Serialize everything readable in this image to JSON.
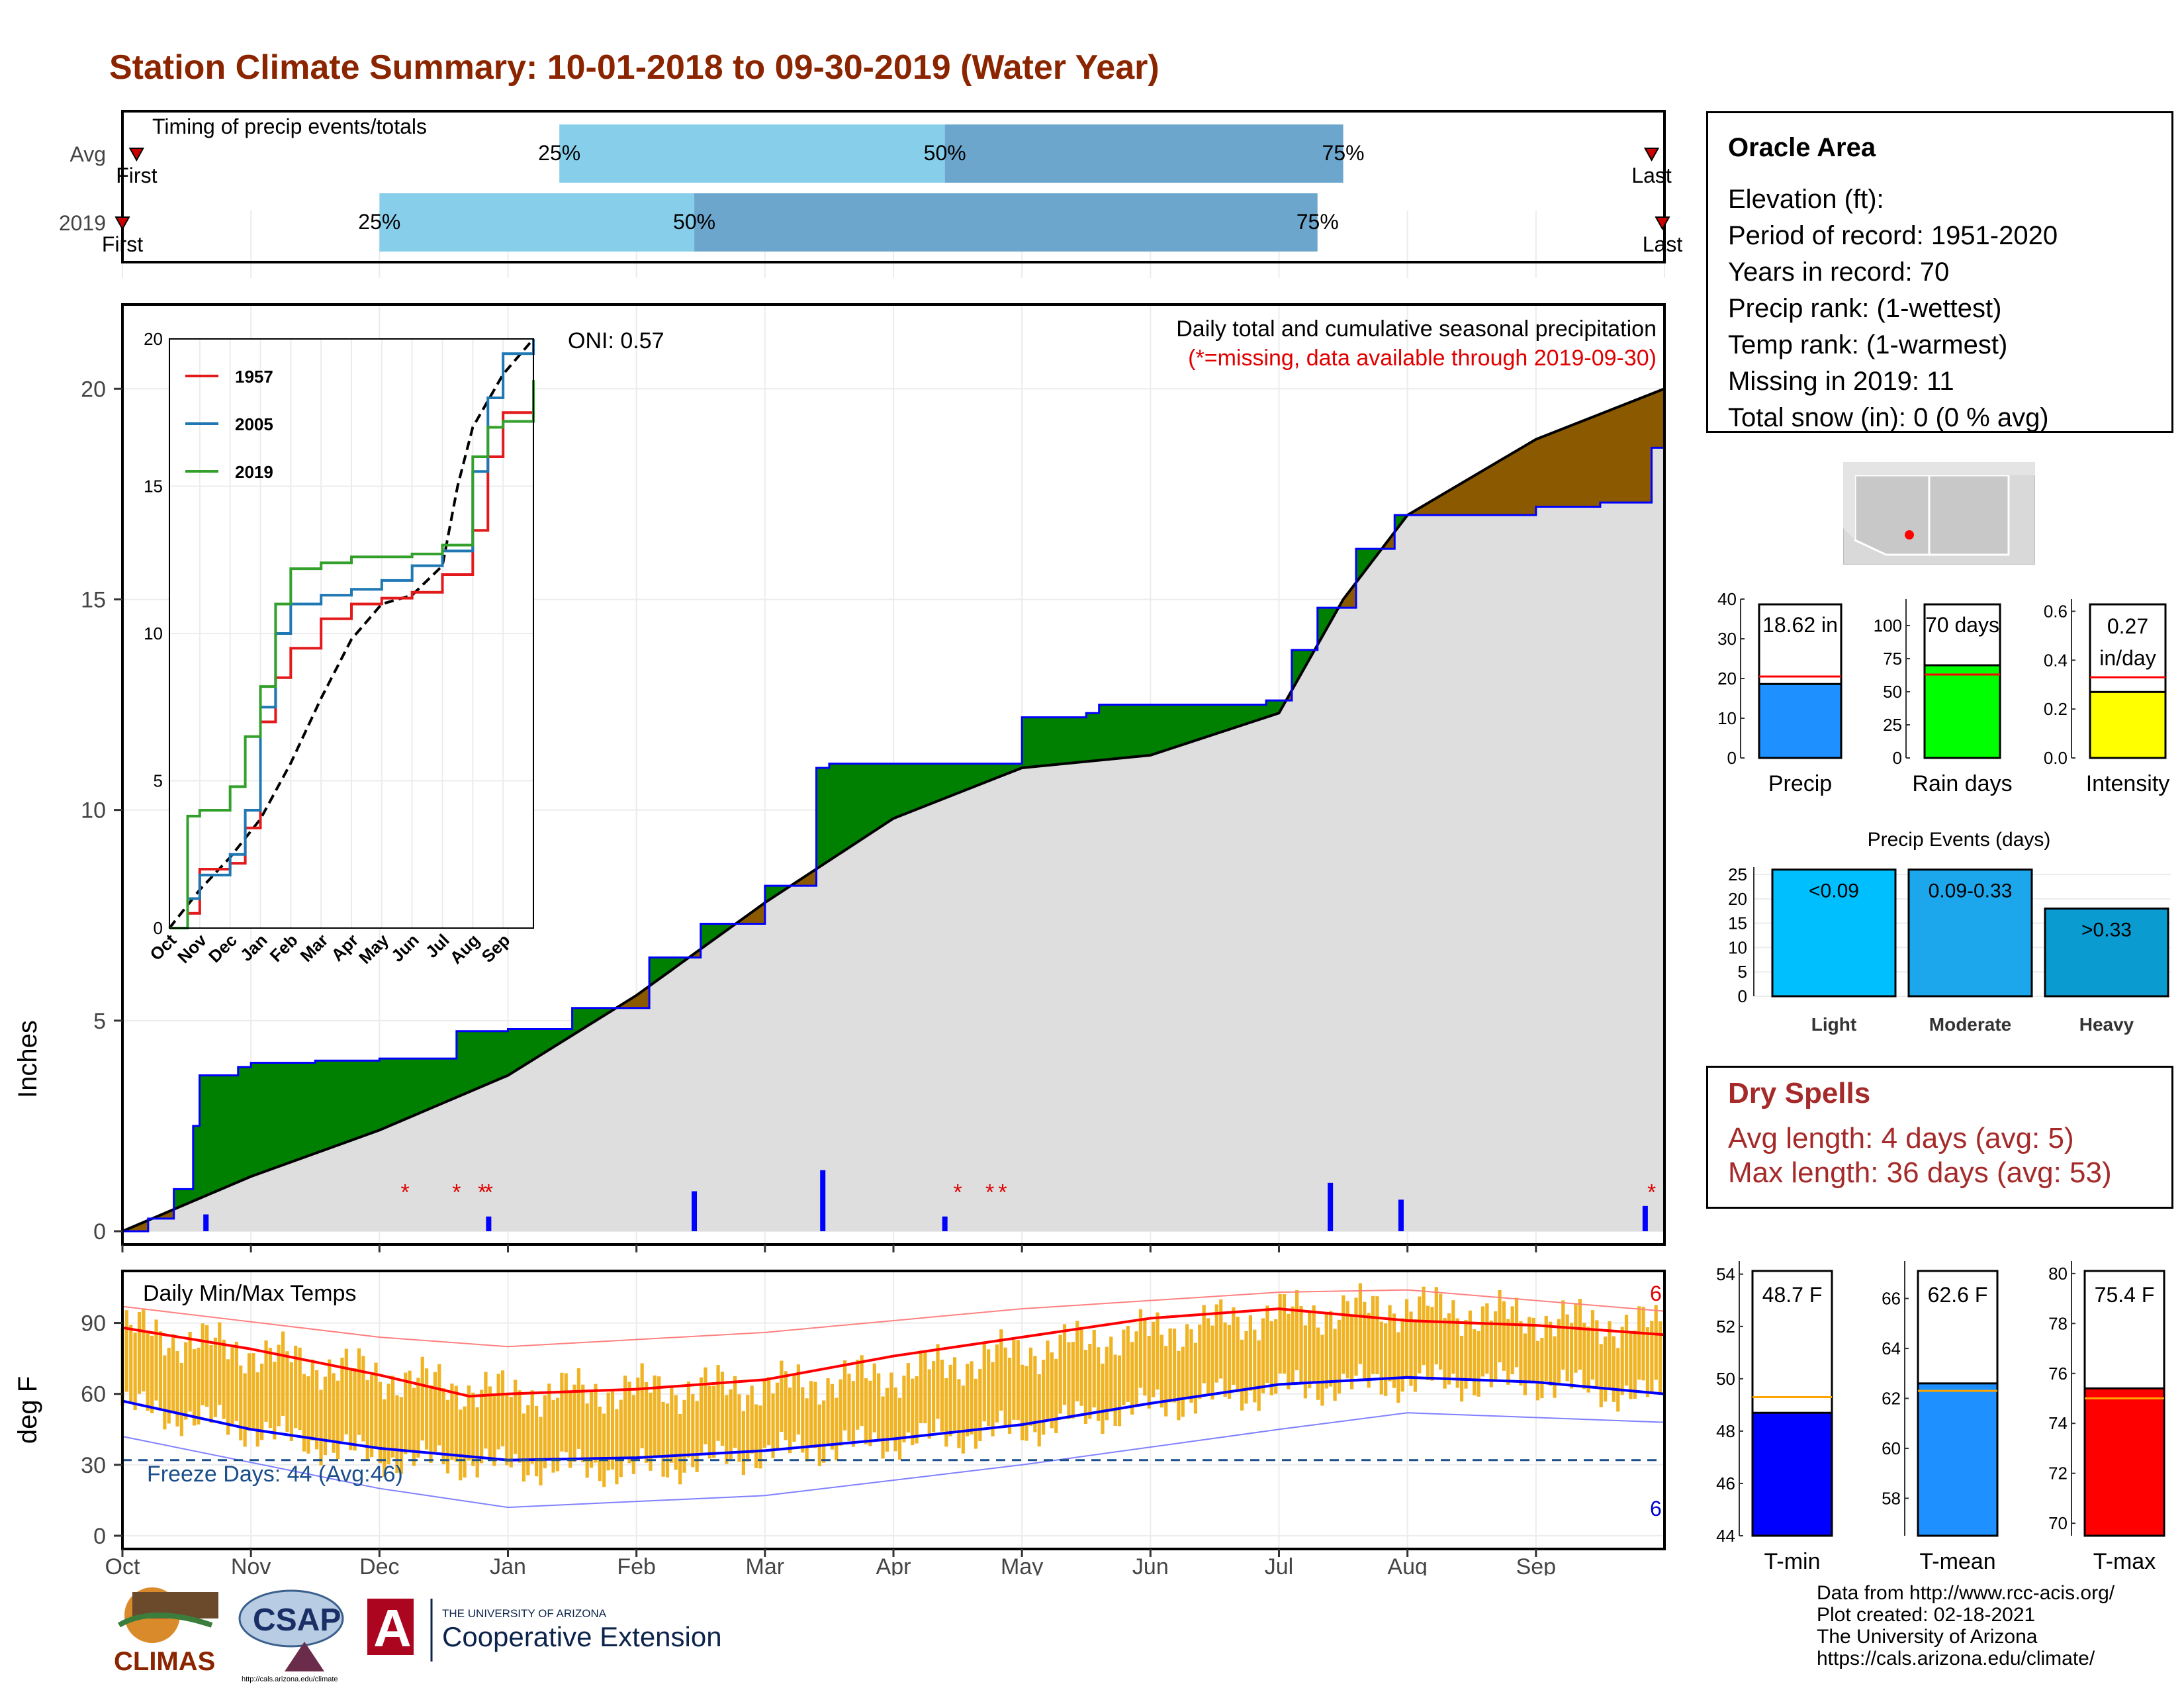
{
  "title": "Station Climate Summary: 10-01-2018 to 09-30-2019 (Water Year)",
  "timing": {
    "label": "Timing of precip events/totals",
    "rows": [
      {
        "name": "Avg",
        "first_label": "First",
        "last_label": "Last",
        "first": 0.11,
        "q25": 3.4,
        "q50": 6.4,
        "q75": 9.5,
        "last": 11.9
      },
      {
        "name": "2019",
        "first_label": "First",
        "last_label": "Last",
        "first": 0.0,
        "q25": 2.0,
        "q50": 4.45,
        "q75": 9.3,
        "last": 12.2
      }
    ],
    "pct_labels": [
      "25%",
      "50%",
      "75%"
    ]
  },
  "precip_panel": {
    "title": "Daily total and cumulative seasonal precipitation",
    "subtitle": "(*=missing, data available through 2019-09-30)",
    "oni": "ONI: 0.57",
    "ylabel": "Inches",
    "yticks": [
      0,
      5,
      10,
      15,
      20
    ],
    "ylim": [
      0,
      22
    ],
    "xticks": [
      "Oct",
      "Nov",
      "Dec",
      "Jan",
      "Feb",
      "Mar",
      "Apr",
      "May",
      "Jun",
      "Jul",
      "Aug",
      "Sep"
    ]
  },
  "inset": {
    "series": [
      {
        "name": "1957",
        "color": "#e31a1c"
      },
      {
        "name": "2005",
        "color": "#1f78b4"
      },
      {
        "name": "2019",
        "color": "#33a02c"
      }
    ],
    "yticks": [
      0,
      5,
      10,
      15,
      20
    ],
    "xticks": [
      "Oct",
      "Nov",
      "Dec",
      "Jan",
      "Feb",
      "Mar",
      "Apr",
      "May",
      "Jun",
      "Jul",
      "Aug",
      "Sep"
    ]
  },
  "temp_panel": {
    "title": "Daily Min/Max Temps",
    "ylabel": "deg F",
    "yticks": [
      0,
      30,
      60,
      90
    ],
    "ylim": [
      0,
      112
    ],
    "freeze_label": "Freeze Days: 44 (Avg:46)",
    "freeze_line": 32,
    "record_high_count": "6",
    "record_low_count": "6",
    "xticks": [
      "Oct",
      "Nov",
      "Dec",
      "Jan",
      "Feb",
      "Mar",
      "Apr",
      "May",
      "Jun",
      "Jul",
      "Aug",
      "Sep"
    ]
  },
  "info": {
    "station": "Oracle Area",
    "lines": [
      "Elevation (ft):",
      "Period of record: 1951-2020",
      "Years in record: 70",
      "Precip rank:  (1-wettest)",
      "Temp rank:  (1-warmest)",
      "Missing in 2019: 11",
      "Total snow (in): 0 (0 % avg)"
    ]
  },
  "summary_bars": [
    {
      "label": "Precip",
      "value_text": "18.62 in",
      "value": 18.62,
      "avg": 20.5,
      "ylim": [
        0,
        40
      ],
      "yticks": [
        0,
        10,
        20,
        30,
        40
      ],
      "color": "#1E90FF"
    },
    {
      "label": "Rain days",
      "value_text": "70 days",
      "value": 70,
      "avg": 63,
      "ylim": [
        0,
        120
      ],
      "yticks": [
        0,
        25,
        50,
        75,
        100
      ],
      "color": "#00FF00"
    },
    {
      "label": "Intensity",
      "value_text": "0.27 in/day",
      "value": 0.27,
      "avg": 0.33,
      "ylim": [
        0,
        0.65
      ],
      "yticks": [
        "0.0",
        "0.2",
        "0.4",
        "0.6"
      ],
      "color": "#FFFF00"
    }
  ],
  "precip_events": {
    "title": "Precip Events (days)",
    "yticks": [
      0,
      5,
      10,
      15,
      20,
      25
    ],
    "ylim": [
      0,
      26.5
    ],
    "bars": [
      {
        "cat": "Light",
        "label": "<0.09",
        "value": 26,
        "color": "#00BFFF"
      },
      {
        "cat": "Moderate",
        "label": "0.09-0.33",
        "value": 26,
        "color": "#1CA7EC"
      },
      {
        "cat": "Heavy",
        "label": ">0.33",
        "value": 18,
        "color": "#0A9BD0"
      }
    ]
  },
  "dry_spells": {
    "title": "Dry Spells",
    "avg_length": "Avg length: 4 days (avg: 5)",
    "max_length": "Max length: 36 days (avg: 53)"
  },
  "temp_bars": [
    {
      "label": "T-min",
      "value_text": "48.7 F",
      "value": 48.7,
      "avg": 49.3,
      "ylim": [
        44,
        54.5
      ],
      "yticks": [
        44,
        46,
        48,
        50,
        52,
        54
      ],
      "color": "#0000FF"
    },
    {
      "label": "T-mean",
      "value_text": "62.6 F",
      "value": 62.6,
      "avg": 62.3,
      "ylim": [
        56.5,
        67.5
      ],
      "yticks": [
        58,
        60,
        62,
        64,
        66
      ],
      "color": "#1E90FF"
    },
    {
      "label": "T-max",
      "value_text": "75.4 F",
      "value": 75.4,
      "avg": 75.0,
      "ylim": [
        69.5,
        80.5
      ],
      "yticks": [
        70,
        72,
        74,
        76,
        78,
        80
      ],
      "color": "#FF0000"
    }
  ],
  "credits": [
    "Data from http://www.rcc-acis.org/",
    "Plot created: 02-18-2021",
    "The University of Arizona",
    "https://cals.arizona.edu/climate/"
  ],
  "logos": {
    "climas": "CLIMAS",
    "csap": "CSAP",
    "csap_url": "http://cals.arizona.edu/climate",
    "ua_small": "THE UNIVERSITY OF ARIZONA",
    "ua_big": "Cooperative Extension"
  },
  "chart_data": [
    {
      "type": "area",
      "title": "Daily total and cumulative seasonal precipitation",
      "ylabel": "Inches",
      "ylim": [
        0,
        22
      ],
      "series": [
        {
          "name": "Cumulative precipitation (2019)",
          "x_month": [
            0,
            0.2,
            0.4,
            0.55,
            0.6,
            0.9,
            1.0,
            1.5,
            2.0,
            2.6,
            3.0,
            3.5,
            4.1,
            4.5,
            5.0,
            5.4,
            5.5,
            7.0,
            7.5,
            7.6,
            8.9,
            9.1,
            9.3,
            9.6,
            9.9,
            10.0,
            11.0,
            11.5,
            11.9,
            12.0
          ],
          "y": [
            0,
            0.3,
            1.0,
            2.5,
            3.7,
            3.9,
            4.0,
            4.05,
            4.1,
            4.75,
            4.8,
            5.3,
            6.5,
            7.3,
            8.2,
            11.0,
            11.1,
            12.2,
            12.3,
            12.5,
            12.6,
            13.8,
            14.8,
            16.2,
            17.0,
            17.0,
            17.2,
            17.3,
            18.6,
            18.6
          ]
        },
        {
          "name": "Average cumulative precipitation",
          "x_month": [
            0,
            1,
            2,
            3,
            4,
            5,
            6,
            7,
            8,
            9,
            9.5,
            10,
            11,
            12
          ],
          "y": [
            0,
            1.3,
            2.4,
            3.7,
            5.6,
            7.8,
            9.8,
            11.0,
            11.3,
            12.3,
            15.0,
            17.0,
            18.8,
            20.0
          ]
        }
      ],
      "daily_precip": [
        {
          "x_month": 0.65,
          "y": 0.4
        },
        {
          "x_month": 2.85,
          "y": 0.35
        },
        {
          "x_month": 4.45,
          "y": 0.95
        },
        {
          "x_month": 5.45,
          "y": 1.45
        },
        {
          "x_month": 6.4,
          "y": 0.35
        },
        {
          "x_month": 9.4,
          "y": 1.15
        },
        {
          "x_month": 9.95,
          "y": 0.75
        },
        {
          "x_month": 11.85,
          "y": 0.6
        }
      ],
      "missing_markers_month": [
        2.2,
        2.6,
        2.8,
        2.85,
        6.5,
        6.75,
        6.85,
        11.9
      ]
    },
    {
      "type": "line",
      "title": "",
      "ylim": [
        0,
        20
      ],
      "series": [
        {
          "name": "1957",
          "x_month": [
            0,
            0.6,
            1.0,
            2.0,
            2.5,
            3.0,
            3.5,
            4.0,
            5.0,
            6.0,
            7.0,
            8.0,
            9.0,
            10.0,
            10.5,
            11.0,
            12.0
          ],
          "y": [
            0,
            0.5,
            2.0,
            2.2,
            3.4,
            7.0,
            8.5,
            9.5,
            10.5,
            11.0,
            11.2,
            11.4,
            12.0,
            13.5,
            16.0,
            17.5,
            17.8
          ]
        },
        {
          "name": "2005",
          "x_month": [
            0,
            0.6,
            1.0,
            2.0,
            2.5,
            3.0,
            3.5,
            4.0,
            5.0,
            6.0,
            7.0,
            8.0,
            9.0,
            10.0,
            10.5,
            11.0,
            12.0
          ],
          "y": [
            0,
            1.0,
            1.8,
            2.5,
            4.0,
            7.5,
            10.0,
            11.0,
            11.3,
            11.5,
            11.8,
            12.3,
            12.8,
            15.5,
            18.0,
            19.5,
            21.0
          ]
        },
        {
          "name": "2019",
          "x_month": [
            0,
            0.6,
            1.0,
            2.0,
            2.5,
            3.0,
            3.5,
            4.0,
            5.0,
            6.0,
            7.0,
            8.0,
            9.0,
            10.0,
            10.5,
            11.0,
            12.0
          ],
          "y": [
            0,
            3.8,
            4.0,
            4.8,
            6.5,
            8.2,
            11.0,
            12.2,
            12.4,
            12.6,
            12.6,
            12.7,
            13.0,
            16.0,
            17.0,
            17.2,
            18.6
          ]
        }
      ]
    },
    {
      "type": "line",
      "title": "Daily Min/Max Temps",
      "ylabel": "deg F",
      "ylim": [
        0,
        112
      ],
      "series": [
        {
          "name": "Avg max",
          "x_month": [
            0,
            1,
            2,
            2.7,
            3,
            4,
            5,
            6,
            7,
            8,
            9,
            10,
            11,
            12
          ],
          "y": [
            88,
            79,
            68,
            59,
            60,
            62,
            66,
            76,
            84,
            92,
            96,
            91,
            89,
            85
          ]
        },
        {
          "name": "Avg min",
          "x_month": [
            0,
            1,
            2,
            3,
            4,
            5,
            6,
            7,
            8,
            9,
            10,
            11,
            12
          ],
          "y": [
            57,
            45,
            37,
            32,
            33,
            36,
            41,
            47,
            56,
            64,
            67,
            65,
            60
          ]
        },
        {
          "name": "Record high",
          "x_month": [
            0,
            2,
            3,
            5,
            7,
            9,
            10,
            12
          ],
          "y": [
            97,
            84,
            80,
            86,
            96,
            103,
            104,
            95
          ]
        },
        {
          "name": "Record low",
          "x_month": [
            0,
            2,
            3,
            5,
            7,
            9,
            10,
            12
          ],
          "y": [
            42,
            20,
            12,
            17,
            30,
            45,
            52,
            48
          ]
        }
      ],
      "daily_range": {
        "x_month": [
          0,
          1,
          2,
          3,
          4,
          5,
          6,
          7,
          8,
          9,
          10,
          11,
          12
        ],
        "low": [
          55,
          45,
          33,
          30,
          28,
          35,
          40,
          45,
          55,
          62,
          65,
          65,
          58
        ],
        "high": [
          88,
          78,
          68,
          60,
          62,
          63,
          68,
          78,
          86,
          94,
          97,
          92,
          88
        ]
      },
      "freeze_line": 32
    },
    {
      "type": "bar",
      "title": "",
      "categories": [
        "Precip"
      ],
      "values": [
        18.62
      ],
      "ylim": [
        0,
        40
      ]
    },
    {
      "type": "bar",
      "title": "",
      "categories": [
        "Rain days"
      ],
      "values": [
        70
      ],
      "ylim": [
        0,
        120
      ]
    },
    {
      "type": "bar",
      "title": "",
      "categories": [
        "Intensity"
      ],
      "values": [
        0.27
      ],
      "ylim": [
        0,
        0.65
      ]
    },
    {
      "type": "bar",
      "title": "Precip Events (days)",
      "categories": [
        "Light",
        "Moderate",
        "Heavy"
      ],
      "values": [
        26,
        26,
        18
      ],
      "ylim": [
        0,
        26.5
      ]
    },
    {
      "type": "bar",
      "title": "",
      "categories": [
        "T-min"
      ],
      "values": [
        48.7
      ],
      "ylim": [
        44,
        54.5
      ]
    },
    {
      "type": "bar",
      "title": "",
      "categories": [
        "T-mean"
      ],
      "values": [
        62.6
      ],
      "ylim": [
        56.5,
        67.5
      ]
    },
    {
      "type": "bar",
      "title": "",
      "categories": [
        "T-max"
      ],
      "values": [
        75.4
      ],
      "ylim": [
        69.5,
        80.5
      ]
    }
  ]
}
